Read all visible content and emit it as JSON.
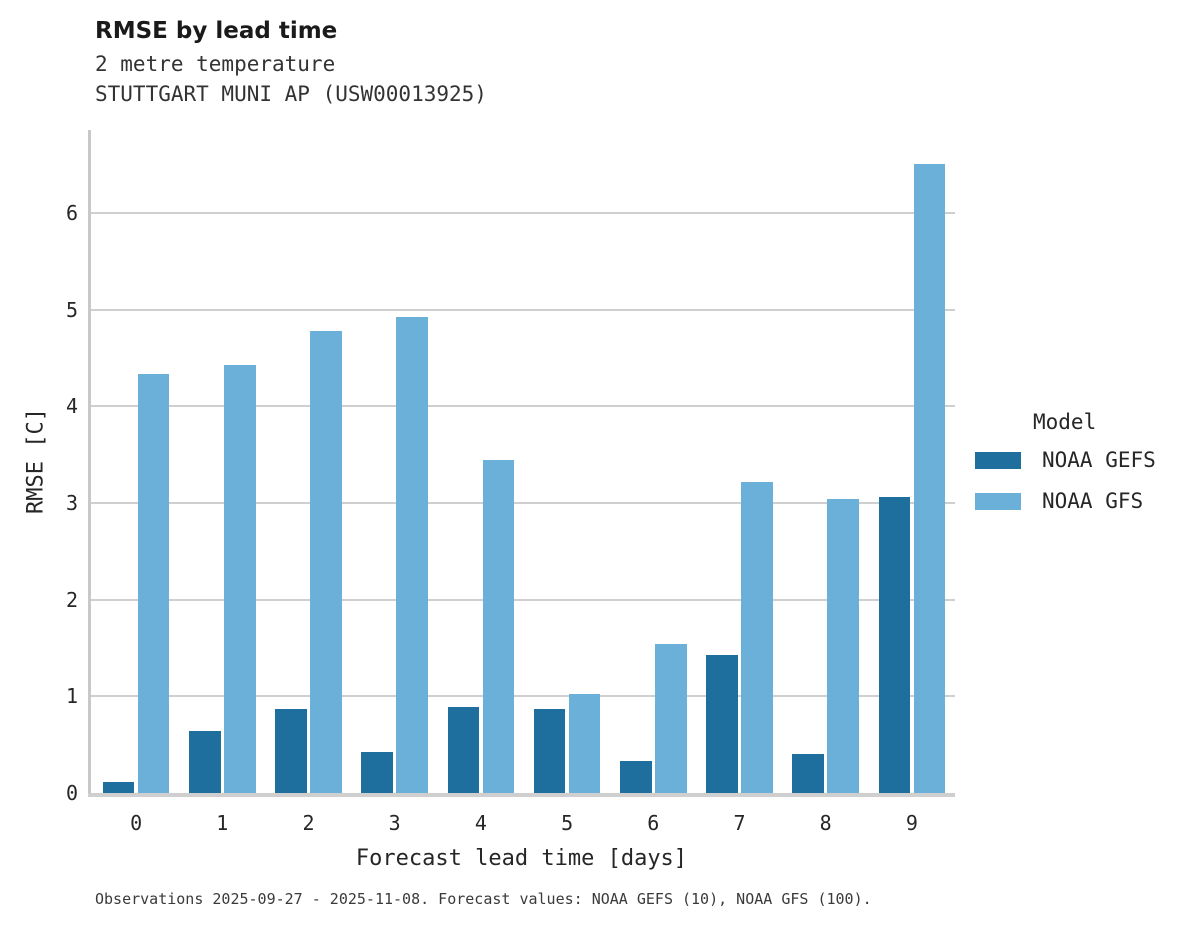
{
  "header": {
    "title": "RMSE by lead time",
    "subtitle_line1": "2 metre temperature",
    "subtitle_line2": "STUTTGART MUNI AP (USW00013925)"
  },
  "axes": {
    "xlabel": "Forecast lead time [days]",
    "ylabel": "RMSE [C]"
  },
  "legend": {
    "title": "Model",
    "entries": [
      {
        "label": "NOAA GEFS",
        "color": "#1e6e9e"
      },
      {
        "label": "NOAA GFS",
        "color": "#6bb0d8"
      }
    ]
  },
  "caption": "Observations 2025-09-27 - 2025-11-08. Forecast values: NOAA GEFS (10), NOAA GFS (100).",
  "chart_data": {
    "type": "bar",
    "title": "RMSE by lead time",
    "categories": [
      "0",
      "1",
      "2",
      "3",
      "4",
      "5",
      "6",
      "7",
      "8",
      "9"
    ],
    "series": [
      {
        "name": "NOAA GEFS",
        "color": "#1e6e9e",
        "values": [
          0.11,
          0.64,
          0.87,
          0.42,
          0.89,
          0.87,
          0.33,
          1.43,
          0.4,
          3.06
        ]
      },
      {
        "name": "NOAA GFS",
        "color": "#6bb0d8",
        "values": [
          4.34,
          4.43,
          4.78,
          4.93,
          3.45,
          1.02,
          1.54,
          3.22,
          3.04,
          6.51
        ]
      }
    ],
    "xlabel": "Forecast lead time [days]",
    "ylabel": "RMSE [C]",
    "ylim": [
      0,
      6.86
    ],
    "yticks": [
      0,
      1,
      2,
      3,
      4,
      5,
      6
    ],
    "grid": true,
    "legend_title": "Model",
    "legend_position": "right"
  },
  "style_colors": {
    "grid": "#cfcfcf",
    "spine": "#c8c8c8",
    "text": "#262626"
  }
}
